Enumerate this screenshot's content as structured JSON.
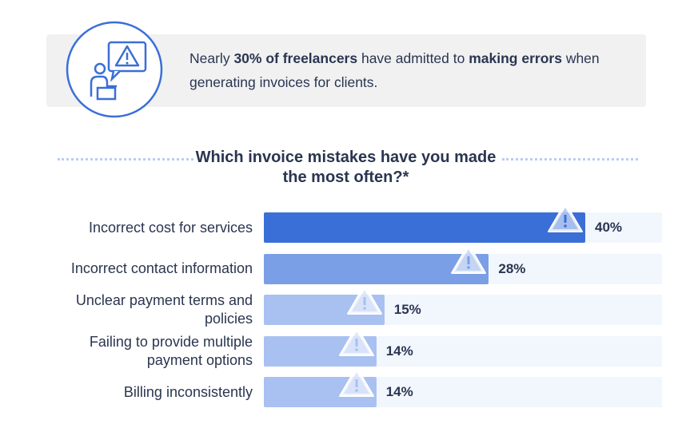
{
  "banner": {
    "text": [
      {
        "text": "Nearly ",
        "bold": false
      },
      {
        "text": "30% of freelancers",
        "bold": true
      },
      {
        "text": " have admitted to ",
        "bold": false
      },
      {
        "text": "making errors",
        "bold": true
      },
      {
        "text": " when generating invoices for clients.",
        "bold": false
      }
    ]
  },
  "chart_data": {
    "type": "bar",
    "orientation": "horizontal",
    "title": "Which invoice mistakes have you made the most often?*",
    "categories": [
      "Incorrect cost for services",
      "Incorrect contact information",
      "Unclear payment terms and policies",
      "Failing to provide multiple payment options",
      "Billing inconsistently"
    ],
    "values": [
      40,
      28,
      15,
      14,
      14
    ],
    "value_labels": [
      "40%",
      "28%",
      "15%",
      "14%",
      "14%"
    ],
    "colors": [
      "#3a6fd8",
      "#7b9fe6",
      "#a9c1f0",
      "#a9c1f0",
      "#a9c1f0"
    ]
  }
}
